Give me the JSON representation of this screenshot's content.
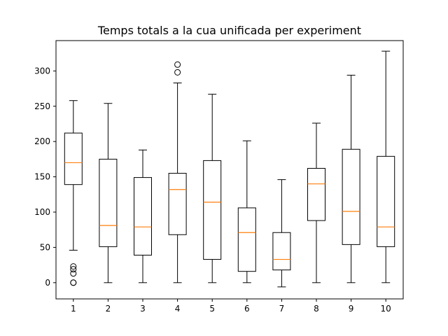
{
  "chart_data": {
    "type": "boxplot",
    "title": "Temps totals a la cua unificada per experiment",
    "xlabel": "",
    "ylabel": "",
    "categories": [
      "1",
      "2",
      "3",
      "4",
      "5",
      "6",
      "7",
      "8",
      "9",
      "10"
    ],
    "boxes": [
      {
        "category": "1",
        "whisker_low": 46,
        "q1": 139,
        "median": 170,
        "q3": 212,
        "whisker_high": 258,
        "outliers": [
          0,
          0,
          13,
          19,
          23
        ]
      },
      {
        "category": "2",
        "whisker_low": 0,
        "q1": 51,
        "median": 81,
        "q3": 175,
        "whisker_high": 254,
        "outliers": []
      },
      {
        "category": "3",
        "whisker_low": 0,
        "q1": 39,
        "median": 79,
        "q3": 149,
        "whisker_high": 188,
        "outliers": []
      },
      {
        "category": "4",
        "whisker_low": 0,
        "q1": 68,
        "median": 132,
        "q3": 155,
        "whisker_high": 283,
        "outliers": [
          298,
          309
        ]
      },
      {
        "category": "5",
        "whisker_low": 0,
        "q1": 33,
        "median": 114,
        "q3": 173,
        "whisker_high": 267,
        "outliers": []
      },
      {
        "category": "6",
        "whisker_low": 0,
        "q1": 16,
        "median": 71,
        "q3": 106,
        "whisker_high": 201,
        "outliers": []
      },
      {
        "category": "7",
        "whisker_low": -6,
        "q1": 18,
        "median": 33,
        "q3": 71,
        "whisker_high": 146,
        "outliers": []
      },
      {
        "category": "8",
        "whisker_low": 0,
        "q1": 88,
        "median": 140,
        "q3": 162,
        "whisker_high": 226,
        "outliers": []
      },
      {
        "category": "9",
        "whisker_low": 0,
        "q1": 54,
        "median": 101,
        "q3": 189,
        "whisker_high": 294,
        "outliers": []
      },
      {
        "category": "10",
        "whisker_low": 0,
        "q1": 51,
        "median": 79,
        "q3": 179,
        "whisker_high": 328,
        "outliers": []
      }
    ],
    "y_ticks": [
      0,
      50,
      100,
      150,
      200,
      250,
      300
    ],
    "ylim": [
      -23,
      343
    ],
    "grid": false,
    "colors": {
      "box": "#000000",
      "median": "#ff7f0e",
      "whisker": "#000000",
      "outlier": "#000000"
    }
  }
}
